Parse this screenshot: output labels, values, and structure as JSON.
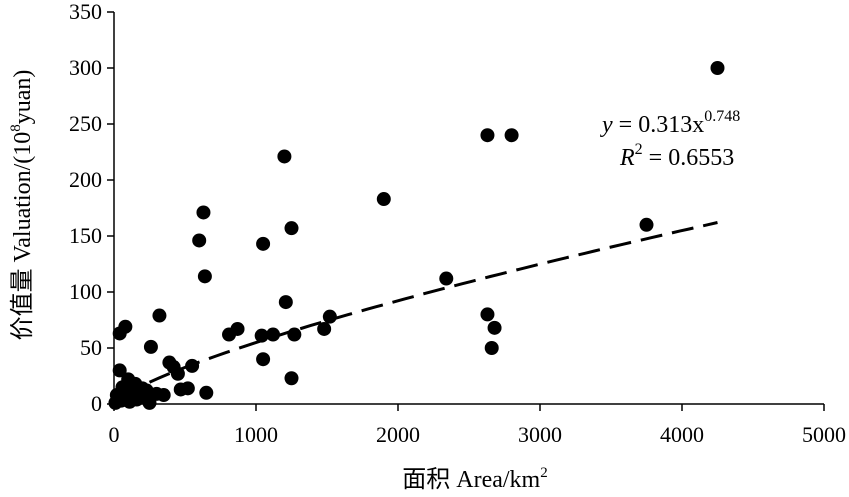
{
  "chart_data": {
    "type": "scatter",
    "xlabel": "面积 Area/km",
    "xlabel_sup": "2",
    "ylabel_pre": "价值量 Valuation/(10",
    "ylabel_sup": "8",
    "ylabel_post": "yuan)",
    "xlim": [
      0,
      5000
    ],
    "ylim": [
      0,
      350
    ],
    "xticks": [
      "0",
      "1000",
      "2000",
      "3000",
      "4000",
      "5000"
    ],
    "yticks": [
      "0",
      "50",
      "100",
      "150",
      "200",
      "250",
      "300",
      "350"
    ],
    "grid": false,
    "legend": "none",
    "marker_color": "#000000",
    "points": [
      [
        4250,
        300
      ],
      [
        2630,
        240
      ],
      [
        2800,
        240
      ],
      [
        1200,
        221
      ],
      [
        1900,
        183
      ],
      [
        630,
        171
      ],
      [
        600,
        146
      ],
      [
        1050,
        143
      ],
      [
        1250,
        157
      ],
      [
        3750,
        160
      ],
      [
        640,
        114
      ],
      [
        2340,
        112
      ],
      [
        1210,
        91
      ],
      [
        2630,
        80
      ],
      [
        2680,
        68
      ],
      [
        2660,
        50
      ],
      [
        1520,
        78
      ],
      [
        1480,
        67
      ],
      [
        1270,
        62
      ],
      [
        1120,
        62
      ],
      [
        1040,
        61
      ],
      [
        870,
        67
      ],
      [
        810,
        62
      ],
      [
        1050,
        40
      ],
      [
        1250,
        23
      ],
      [
        320,
        79
      ],
      [
        80,
        69
      ],
      [
        40,
        63
      ],
      [
        260,
        51
      ],
      [
        390,
        37
      ],
      [
        420,
        33
      ],
      [
        550,
        34
      ],
      [
        450,
        27
      ],
      [
        40,
        30
      ],
      [
        100,
        22
      ],
      [
        150,
        18
      ],
      [
        60,
        15
      ],
      [
        130,
        12
      ],
      [
        200,
        14
      ],
      [
        230,
        12
      ],
      [
        300,
        9
      ],
      [
        350,
        8
      ],
      [
        470,
        13
      ],
      [
        520,
        14
      ],
      [
        650,
        10
      ],
      [
        20,
        8
      ],
      [
        30,
        5
      ],
      [
        50,
        3
      ],
      [
        70,
        6
      ],
      [
        90,
        4
      ],
      [
        110,
        2
      ],
      [
        160,
        4
      ],
      [
        250,
        1
      ],
      [
        10,
        1
      ],
      [
        180,
        7
      ]
    ],
    "fit_x_range": [
      250,
      4250
    ],
    "equation_pre": "y = 0.313x",
    "equation_sup": "0.748",
    "r2_pre": "R",
    "r2_sup": "2",
    "r2_post": " = 0.6553"
  }
}
